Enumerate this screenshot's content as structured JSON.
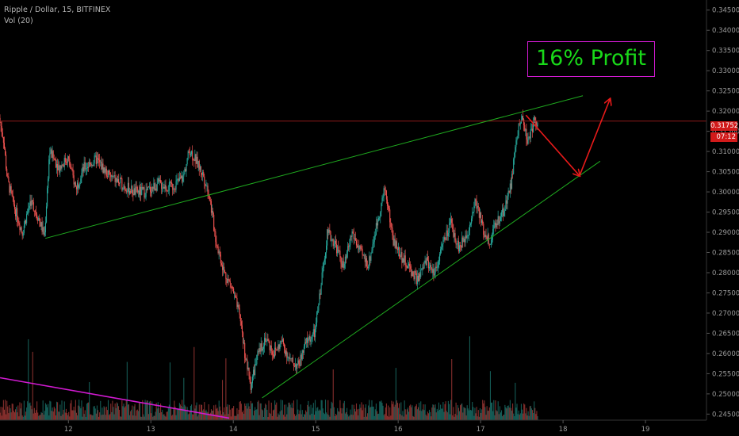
{
  "header": {
    "symbol_line": "Ripple / Dollar, 15, BITFINEX",
    "volume_line": "Vol (20)"
  },
  "annotations": {
    "profit_label": "16% Profit",
    "last_price": "0.31752",
    "countdown": "07:12"
  },
  "colors": {
    "background": "#000000",
    "up_candle": "#26a69a",
    "down_candle": "#ef5350",
    "trendline": "#1faa1f",
    "arrow": "#e81a1a",
    "price_line": "#8b1a1a",
    "downtrend_line": "#d11ad1",
    "profit_box_border": "#d11ad1",
    "profit_text": "#19d919"
  },
  "chart_data": {
    "type": "candlestick",
    "title": "Ripple / Dollar, 15, BITFINEX",
    "x_ticks": [
      "12",
      "13",
      "14",
      "15",
      "16",
      "17",
      "18",
      "19"
    ],
    "y_ticks": [
      "0.34500",
      "0.34000",
      "0.33500",
      "0.33000",
      "0.32500",
      "0.32000",
      "0.31500",
      "0.31000",
      "0.30500",
      "0.30000",
      "0.29500",
      "0.29000",
      "0.28500",
      "0.28000",
      "0.27500",
      "0.27000",
      "0.26500",
      "0.26000",
      "0.25500",
      "0.25000",
      "0.24500"
    ],
    "ylim": [
      0.2435,
      0.3475
    ],
    "xlim": [
      11.17,
      19.74
    ],
    "last_price": 0.31752,
    "approx_price_path": [
      [
        11.17,
        0.3183
      ],
      [
        11.22,
        0.3135
      ],
      [
        11.27,
        0.303
      ],
      [
        11.35,
        0.2965
      ],
      [
        11.45,
        0.29
      ],
      [
        11.55,
        0.298
      ],
      [
        11.65,
        0.2935
      ],
      [
        11.72,
        0.289
      ],
      [
        11.78,
        0.31
      ],
      [
        11.9,
        0.306
      ],
      [
        12.0,
        0.3085
      ],
      [
        12.1,
        0.301
      ],
      [
        12.2,
        0.306
      ],
      [
        12.35,
        0.308
      ],
      [
        12.5,
        0.304
      ],
      [
        12.65,
        0.302
      ],
      [
        12.8,
        0.3
      ],
      [
        12.95,
        0.3
      ],
      [
        13.1,
        0.302
      ],
      [
        13.25,
        0.301
      ],
      [
        13.4,
        0.3035
      ],
      [
        13.48,
        0.3105
      ],
      [
        13.55,
        0.308
      ],
      [
        13.65,
        0.304
      ],
      [
        13.72,
        0.299
      ],
      [
        13.8,
        0.288
      ],
      [
        13.9,
        0.28
      ],
      [
        14.0,
        0.276
      ],
      [
        14.1,
        0.268
      ],
      [
        14.15,
        0.26
      ],
      [
        14.22,
        0.252
      ],
      [
        14.3,
        0.259
      ],
      [
        14.4,
        0.264
      ],
      [
        14.5,
        0.26
      ],
      [
        14.6,
        0.263
      ],
      [
        14.7,
        0.258
      ],
      [
        14.8,
        0.257
      ],
      [
        14.9,
        0.263
      ],
      [
        15.0,
        0.265
      ],
      [
        15.08,
        0.278
      ],
      [
        15.15,
        0.29
      ],
      [
        15.25,
        0.287
      ],
      [
        15.35,
        0.281
      ],
      [
        15.45,
        0.29
      ],
      [
        15.55,
        0.285
      ],
      [
        15.65,
        0.282
      ],
      [
        15.75,
        0.292
      ],
      [
        15.85,
        0.301
      ],
      [
        15.95,
        0.288
      ],
      [
        16.05,
        0.284
      ],
      [
        16.15,
        0.281
      ],
      [
        16.25,
        0.278
      ],
      [
        16.35,
        0.283
      ],
      [
        16.45,
        0.28
      ],
      [
        16.55,
        0.287
      ],
      [
        16.65,
        0.292
      ],
      [
        16.75,
        0.286
      ],
      [
        16.85,
        0.29
      ],
      [
        16.95,
        0.298
      ],
      [
        17.05,
        0.29
      ],
      [
        17.12,
        0.288
      ],
      [
        17.2,
        0.292
      ],
      [
        17.3,
        0.296
      ],
      [
        17.38,
        0.302
      ],
      [
        17.45,
        0.314
      ],
      [
        17.52,
        0.319
      ],
      [
        17.58,
        0.312
      ],
      [
        17.65,
        0.317
      ],
      [
        17.7,
        0.3175
      ]
    ],
    "trendlines": [
      {
        "label": "upper",
        "from": [
          11.72,
          0.2885
        ],
        "to": [
          18.24,
          0.3238
        ]
      },
      {
        "label": "lower",
        "from": [
          14.35,
          0.249
        ],
        "to": [
          18.45,
          0.3076
        ]
      },
      {
        "label": "downtrend",
        "from": [
          11.17,
          0.254
        ],
        "to": [
          13.95,
          0.244
        ]
      }
    ],
    "projection_arrows": [
      {
        "from": [
          17.55,
          0.319
        ],
        "to": [
          18.2,
          0.304
        ]
      },
      {
        "from": [
          18.2,
          0.304
        ],
        "to": [
          18.57,
          0.323
        ]
      }
    ]
  }
}
